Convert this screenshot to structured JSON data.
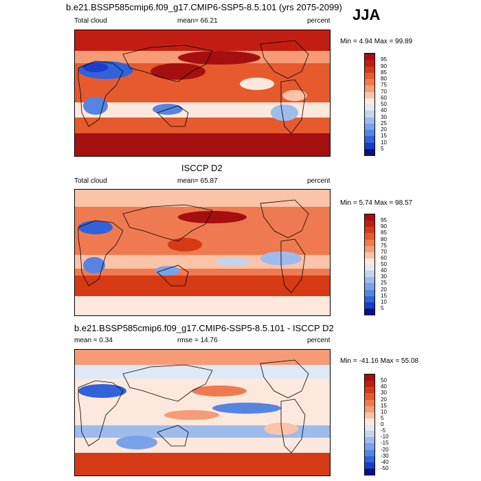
{
  "season": "JJA",
  "units": "percent",
  "chart_data": [
    {
      "type": "heatmap",
      "title": "b.e21.BSSP585cmip6.f09_g17.CMIP6-SSP5-8.5.101 (yrs 2075-2099)",
      "left_label": "Total cloud",
      "center_label": "mean=  66.21",
      "right_label": "percent",
      "minmax": "Min =   4.94 Max =  99.89",
      "mean": 66.21,
      "min": 4.94,
      "max": 99.89,
      "colorbar": {
        "levels": [
          "95",
          "90",
          "85",
          "80",
          "75",
          "70",
          "60",
          "50",
          "40",
          "30",
          "25",
          "20",
          "15",
          "10",
          "5"
        ],
        "colors": [
          "#a50f0f",
          "#c21d12",
          "#d63a14",
          "#e65a2e",
          "#f07a50",
          "#f59b76",
          "#fbc3a7",
          "#fce8dc",
          "#dfe8f5",
          "#c2d4ef",
          "#9dbcec",
          "#7aa2ea",
          "#5584e3",
          "#3262da",
          "#1c3ccb",
          "#001487"
        ]
      }
    },
    {
      "type": "heatmap",
      "title": "ISCCP D2",
      "left_label": "Total cloud",
      "center_label": "mean=  65.87",
      "right_label": "percent",
      "minmax": "Min =   5.74 Max =  98.57",
      "mean": 65.87,
      "min": 5.74,
      "max": 98.57,
      "colorbar": {
        "levels": [
          "95",
          "90",
          "85",
          "80",
          "75",
          "70",
          "60",
          "50",
          "40",
          "30",
          "25",
          "20",
          "15",
          "10",
          "5"
        ],
        "colors": [
          "#a50f0f",
          "#c21d12",
          "#d63a14",
          "#e65a2e",
          "#f07a50",
          "#f59b76",
          "#fbc3a7",
          "#fce8dc",
          "#dfe8f5",
          "#c2d4ef",
          "#9dbcec",
          "#7aa2ea",
          "#5584e3",
          "#3262da",
          "#1c3ccb",
          "#001487"
        ]
      }
    },
    {
      "type": "heatmap",
      "title": "b.e21.BSSP585cmip6.f09_g17.CMIP6-SSP5-8.5.101 - ISCCP D2",
      "left_label": "mean =   0.34",
      "center_label": "rmse =  14.76",
      "right_label": "percent",
      "minmax": "Min = -41.16 Max =  55.08",
      "mean": 0.34,
      "rmse": 14.76,
      "min": -41.16,
      "max": 55.08,
      "colorbar": {
        "levels": [
          "50",
          "40",
          "30",
          "20",
          "15",
          "10",
          "5",
          "0",
          "-5",
          "-10",
          "-15",
          "-20",
          "-30",
          "-40",
          "-50"
        ],
        "colors": [
          "#a50f0f",
          "#c21d12",
          "#d63a14",
          "#e65a2e",
          "#f07a50",
          "#f59b76",
          "#fbc3a7",
          "#fce8dc",
          "#dfe8f5",
          "#c2d4ef",
          "#9dbcec",
          "#7aa2ea",
          "#5584e3",
          "#3262da",
          "#1c3ccb",
          "#001487"
        ]
      }
    }
  ]
}
